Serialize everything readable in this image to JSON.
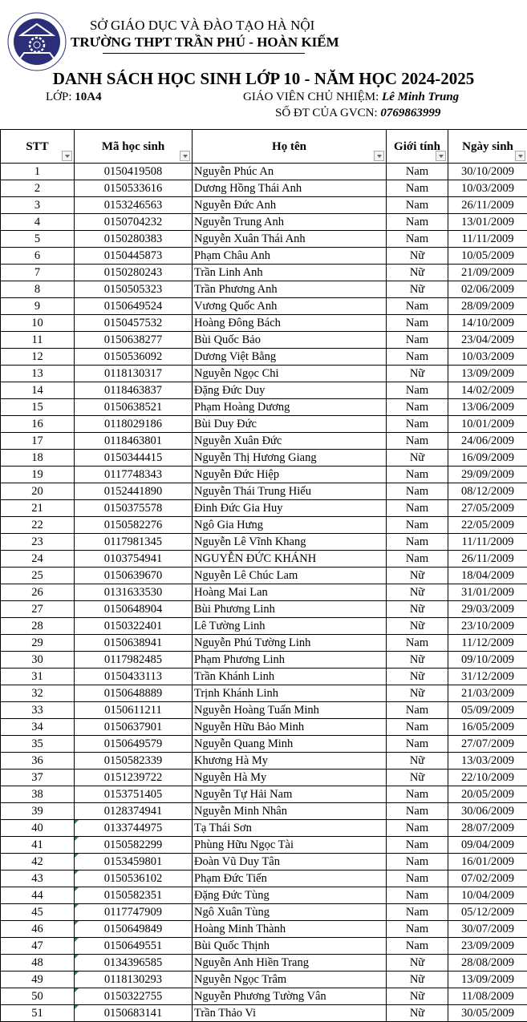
{
  "header": {
    "department": "SỞ GIÁO DỤC VÀ ĐÀO TẠO HÀ NỘI",
    "school": "TRƯỜNG THPT TRẦN PHÚ - HOÀN KIẾM",
    "logo_text": "TRƯỜNG THPT TRẦN PHÚ - HOÀN KIẾM",
    "title": "DANH SÁCH HỌC SINH LỚP 10 - NĂM HỌC 2024-2025",
    "class_label": "LỚP: ",
    "class_value": "10A4",
    "teacher_label": "GIÁO VIÊN CHỦ NHIỆM: ",
    "teacher_value": "Lê Minh Trung",
    "phone_label": "SỐ ĐT CỦA GVCN: ",
    "phone_value": "0769863999"
  },
  "colors": {
    "logo": "#2b2f7a",
    "error_marker": "#1f8a3a"
  },
  "table": {
    "columns": [
      "STT",
      "Mã học sinh",
      "Họ tên",
      "Giới tính",
      "Ngày sinh"
    ],
    "rows": [
      [
        "1",
        "0150419508",
        "Nguyễn Phúc An",
        "Nam",
        "30/10/2009"
      ],
      [
        "2",
        "0150533616",
        "Dương Hồng Thái Anh",
        "Nam",
        "10/03/2009"
      ],
      [
        "3",
        "0153246563",
        "Nguyễn Đức Anh",
        "Nam",
        "26/11/2009"
      ],
      [
        "4",
        "0150704232",
        "Nguyễn Trung Anh",
        "Nam",
        "13/01/2009"
      ],
      [
        "5",
        "0150280383",
        "Nguyễn Xuân Thái Anh",
        "Nam",
        "11/11/2009"
      ],
      [
        "6",
        "0150445873",
        "Phạm Châu Anh",
        "Nữ",
        "10/05/2009"
      ],
      [
        "7",
        "0150280243",
        "Trần Linh Anh",
        "Nữ",
        "21/09/2009"
      ],
      [
        "8",
        "0150505323",
        "Trần Phương Anh",
        "Nữ",
        "02/06/2009"
      ],
      [
        "9",
        "0150649524",
        "Vương Quốc Anh",
        "Nam",
        "28/09/2009"
      ],
      [
        "10",
        "0150457532",
        "Hoàng Đông Bách",
        "Nam",
        "14/10/2009"
      ],
      [
        "11",
        "0150638277",
        "Bùi Quốc Bảo",
        "Nam",
        "23/04/2009"
      ],
      [
        "12",
        "0150536092",
        "Dương Việt Bằng",
        "Nam",
        "10/03/2009"
      ],
      [
        "13",
        "0118130317",
        "Nguyễn Ngọc Chi",
        "Nữ",
        "13/09/2009"
      ],
      [
        "14",
        "0118463837",
        "Đặng Đức Duy",
        "Nam",
        "14/02/2009"
      ],
      [
        "15",
        "0150638521",
        "Phạm Hoàng Dương",
        "Nam",
        "13/06/2009"
      ],
      [
        "16",
        "0118029186",
        "Bùi Duy Đức",
        "Nam",
        "10/01/2009"
      ],
      [
        "17",
        "0118463801",
        "Nguyễn Xuân Đức",
        "Nam",
        "24/06/2009"
      ],
      [
        "18",
        "0150344415",
        "Nguyễn Thị Hương Giang",
        "Nữ",
        "16/09/2009"
      ],
      [
        "19",
        "0117748343",
        "Nguyễn Đức Hiệp",
        "Nam",
        "29/09/2009"
      ],
      [
        "20",
        "0152441890",
        "Nguyễn Thái Trung Hiếu",
        "Nam",
        "08/12/2009"
      ],
      [
        "21",
        "0150375578",
        "Đinh Đức Gia Huy",
        "Nam",
        "27/05/2009"
      ],
      [
        "22",
        "0150582276",
        "Ngô Gia Hưng",
        "Nam",
        "22/05/2009"
      ],
      [
        "23",
        "0117981345",
        "Nguyễn Lê Vĩnh Khang",
        "Nam",
        "11/11/2009"
      ],
      [
        "24",
        "0103754941",
        "NGUYỄN ĐỨC KHÁNH",
        "Nam",
        "26/11/2009"
      ],
      [
        "25",
        "0150639670",
        "Nguyễn Lê Chúc Lam",
        "Nữ",
        "18/04/2009"
      ],
      [
        "26",
        "0131633530",
        "Hoàng Mai Lan",
        "Nữ",
        "31/01/2009"
      ],
      [
        "27",
        "0150648904",
        "Bùi Phương Linh",
        "Nữ",
        "29/03/2009"
      ],
      [
        "28",
        "0150322401",
        "Lê Tường Linh",
        "Nữ",
        "23/10/2009"
      ],
      [
        "29",
        "0150638941",
        "Nguyễn Phú Tường Linh",
        "Nam",
        "11/12/2009"
      ],
      [
        "30",
        "0117982485",
        "Phạm Phương Linh",
        "Nữ",
        "09/10/2009"
      ],
      [
        "31",
        "0150433113",
        "Trần Khánh Linh",
        "Nữ",
        "31/12/2009"
      ],
      [
        "32",
        "0150648889",
        "Trịnh Khánh Linh",
        "Nữ",
        "21/03/2009"
      ],
      [
        "33",
        "0150611211",
        "Nguyễn Hoàng Tuấn Minh",
        "Nam",
        "05/09/2009"
      ],
      [
        "34",
        "0150637901",
        "Nguyễn Hữu Bảo Minh",
        "Nam",
        "16/05/2009"
      ],
      [
        "35",
        "0150649579",
        "Nguyễn Quang Minh",
        "Nam",
        "27/07/2009"
      ],
      [
        "36",
        "0150582339",
        "Khương Hà My",
        "Nữ",
        "13/03/2009"
      ],
      [
        "37",
        "0151239722",
        "Nguyễn Hà My",
        "Nữ",
        "22/10/2009"
      ],
      [
        "38",
        "0153751405",
        "Nguyễn Tự Hải Nam",
        "Nam",
        "20/05/2009"
      ],
      [
        "39",
        "0128374941",
        "Nguyễn Minh Nhân",
        "Nam",
        "30/06/2009"
      ],
      [
        "40",
        "0133744975",
        "Tạ Thái Sơn",
        "Nam",
        "28/07/2009"
      ],
      [
        "41",
        "0150582299",
        "Phùng Hữu Ngọc Tài",
        "Nam",
        "09/04/2009"
      ],
      [
        "42",
        "0153459801",
        "Đoàn Vũ Duy Tân",
        "Nam",
        "16/01/2009"
      ],
      [
        "43",
        "0150536102",
        "Phạm Đức Tiến",
        "Nam",
        "07/02/2009"
      ],
      [
        "44",
        "0150582351",
        "Đặng Đức Tùng",
        "Nam",
        "10/04/2009"
      ],
      [
        "45",
        "0117747909",
        "Ngô Xuân Tùng",
        "Nam",
        "05/12/2009"
      ],
      [
        "46",
        "0150649849",
        "Hoàng Minh Thành",
        "Nam",
        "30/07/2009"
      ],
      [
        "47",
        "0150649551",
        "Bùi Quốc Thịnh",
        "Nam",
        "23/09/2009"
      ],
      [
        "48",
        "0134396585",
        "Nguyễn Anh Hiền Trang",
        "Nữ",
        "28/08/2009"
      ],
      [
        "49",
        "0118130293",
        "Nguyễn Ngọc Trâm",
        "Nữ",
        "13/09/2009"
      ],
      [
        "50",
        "0150322755",
        "Nguyễn Phương Tường Vân",
        "Nữ",
        "11/08/2009"
      ],
      [
        "51",
        "0150683141",
        "Trần Thảo Vi",
        "Nữ",
        "30/05/2009"
      ]
    ],
    "marked_rows_from": 40
  }
}
